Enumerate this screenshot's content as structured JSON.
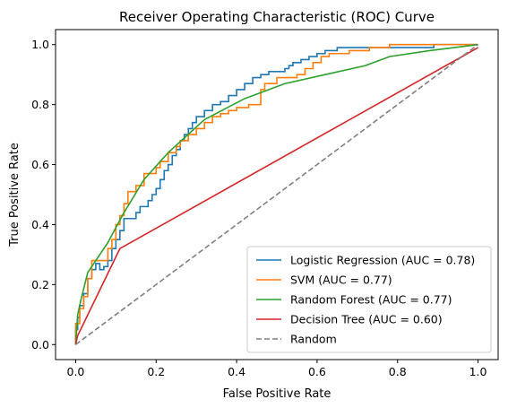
{
  "chart_data": {
    "type": "line",
    "title": "Receiver Operating Characteristic (ROC) Curve",
    "xlabel": "False Positive Rate",
    "ylabel": "True Positive Rate",
    "xlim": [
      -0.05,
      1.05
    ],
    "ylim": [
      -0.05,
      1.05
    ],
    "xticks": [
      0.0,
      0.2,
      0.4,
      0.6,
      0.8,
      1.0
    ],
    "yticks": [
      0.0,
      0.2,
      0.4,
      0.6,
      0.8,
      1.0
    ],
    "xtick_labels": [
      "0.0",
      "0.2",
      "0.4",
      "0.6",
      "0.8",
      "1.0"
    ],
    "ytick_labels": [
      "0.0",
      "0.2",
      "0.4",
      "0.6",
      "0.8",
      "1.0"
    ],
    "grid": false,
    "legend_position": "lower-right",
    "series": [
      {
        "name": "Logistic Regression (AUC = 0.78)",
        "color": "#1f77b4",
        "step": true,
        "x": [
          0.0,
          0.0,
          0.005,
          0.005,
          0.01,
          0.01,
          0.02,
          0.02,
          0.03,
          0.03,
          0.04,
          0.04,
          0.05,
          0.05,
          0.06,
          0.06,
          0.07,
          0.07,
          0.08,
          0.08,
          0.09,
          0.09,
          0.1,
          0.1,
          0.11,
          0.11,
          0.12,
          0.12,
          0.15,
          0.15,
          0.16,
          0.16,
          0.18,
          0.18,
          0.19,
          0.19,
          0.2,
          0.2,
          0.21,
          0.21,
          0.22,
          0.22,
          0.23,
          0.23,
          0.24,
          0.24,
          0.25,
          0.25,
          0.26,
          0.26,
          0.27,
          0.27,
          0.28,
          0.28,
          0.29,
          0.29,
          0.3,
          0.3,
          0.32,
          0.32,
          0.34,
          0.34,
          0.36,
          0.36,
          0.38,
          0.38,
          0.4,
          0.4,
          0.42,
          0.42,
          0.44,
          0.44,
          0.46,
          0.46,
          0.48,
          0.48,
          0.52,
          0.52,
          0.53,
          0.53,
          0.54,
          0.54,
          0.56,
          0.56,
          0.58,
          0.58,
          0.6,
          0.6,
          0.62,
          0.62,
          0.65,
          0.65,
          0.89,
          0.89,
          1.0
        ],
        "y": [
          0.0,
          0.05,
          0.05,
          0.09,
          0.09,
          0.13,
          0.13,
          0.17,
          0.17,
          0.22,
          0.22,
          0.25,
          0.25,
          0.27,
          0.27,
          0.25,
          0.25,
          0.26,
          0.26,
          0.28,
          0.28,
          0.32,
          0.32,
          0.35,
          0.35,
          0.38,
          0.38,
          0.42,
          0.42,
          0.44,
          0.44,
          0.46,
          0.46,
          0.48,
          0.48,
          0.5,
          0.5,
          0.52,
          0.52,
          0.55,
          0.55,
          0.58,
          0.58,
          0.6,
          0.6,
          0.63,
          0.63,
          0.65,
          0.65,
          0.68,
          0.68,
          0.7,
          0.7,
          0.72,
          0.72,
          0.74,
          0.74,
          0.76,
          0.76,
          0.78,
          0.78,
          0.8,
          0.8,
          0.81,
          0.81,
          0.83,
          0.83,
          0.85,
          0.85,
          0.87,
          0.87,
          0.89,
          0.89,
          0.9,
          0.9,
          0.91,
          0.91,
          0.92,
          0.92,
          0.93,
          0.93,
          0.94,
          0.94,
          0.95,
          0.95,
          0.96,
          0.96,
          0.97,
          0.97,
          0.98,
          0.98,
          0.99,
          0.99,
          1.0,
          1.0
        ]
      },
      {
        "name": "SVM (AUC = 0.77)",
        "color": "#ff7f0e",
        "step": true,
        "x": [
          0.0,
          0.0,
          0.01,
          0.01,
          0.02,
          0.02,
          0.03,
          0.03,
          0.04,
          0.04,
          0.08,
          0.08,
          0.09,
          0.09,
          0.1,
          0.1,
          0.11,
          0.11,
          0.12,
          0.12,
          0.13,
          0.13,
          0.15,
          0.15,
          0.17,
          0.17,
          0.2,
          0.2,
          0.21,
          0.21,
          0.23,
          0.23,
          0.25,
          0.25,
          0.26,
          0.26,
          0.28,
          0.28,
          0.3,
          0.3,
          0.32,
          0.32,
          0.34,
          0.34,
          0.36,
          0.36,
          0.38,
          0.38,
          0.4,
          0.4,
          0.43,
          0.43,
          0.46,
          0.46,
          0.47,
          0.47,
          0.5,
          0.5,
          0.55,
          0.55,
          0.57,
          0.57,
          0.59,
          0.59,
          0.61,
          0.61,
          0.63,
          0.63,
          0.68,
          0.68,
          0.73,
          0.73,
          0.78,
          0.78,
          1.0
        ],
        "y": [
          0.0,
          0.07,
          0.07,
          0.12,
          0.12,
          0.16,
          0.16,
          0.22,
          0.22,
          0.28,
          0.28,
          0.32,
          0.32,
          0.35,
          0.35,
          0.4,
          0.4,
          0.43,
          0.43,
          0.47,
          0.47,
          0.51,
          0.51,
          0.53,
          0.53,
          0.57,
          0.57,
          0.59,
          0.59,
          0.61,
          0.61,
          0.64,
          0.64,
          0.66,
          0.66,
          0.68,
          0.68,
          0.7,
          0.7,
          0.72,
          0.72,
          0.74,
          0.74,
          0.76,
          0.76,
          0.77,
          0.77,
          0.78,
          0.78,
          0.79,
          0.79,
          0.8,
          0.8,
          0.85,
          0.85,
          0.87,
          0.87,
          0.89,
          0.89,
          0.9,
          0.9,
          0.92,
          0.92,
          0.94,
          0.94,
          0.96,
          0.96,
          0.97,
          0.97,
          0.98,
          0.98,
          0.99,
          0.99,
          1.0,
          1.0
        ]
      },
      {
        "name": "Random Forest (AUC = 0.77)",
        "color": "#2ca02c",
        "step": false,
        "x": [
          0.0,
          0.005,
          0.015,
          0.03,
          0.05,
          0.08,
          0.12,
          0.17,
          0.23,
          0.32,
          0.42,
          0.52,
          0.62,
          0.72,
          0.78,
          0.88,
          1.0
        ],
        "y": [
          0.0,
          0.1,
          0.16,
          0.24,
          0.28,
          0.34,
          0.44,
          0.55,
          0.64,
          0.75,
          0.82,
          0.87,
          0.9,
          0.93,
          0.96,
          0.98,
          1.0
        ]
      },
      {
        "name": "Decision Tree (AUC = 0.60)",
        "color": "#d62728",
        "step": false,
        "x": [
          0.0,
          0.005,
          0.11,
          1.0
        ],
        "y": [
          0.0,
          0.03,
          0.32,
          0.99
        ]
      },
      {
        "name": "Random",
        "color": "#7f7f7f",
        "dashed": true,
        "step": false,
        "x": [
          0.0,
          1.0
        ],
        "y": [
          0.0,
          1.0
        ]
      }
    ]
  }
}
